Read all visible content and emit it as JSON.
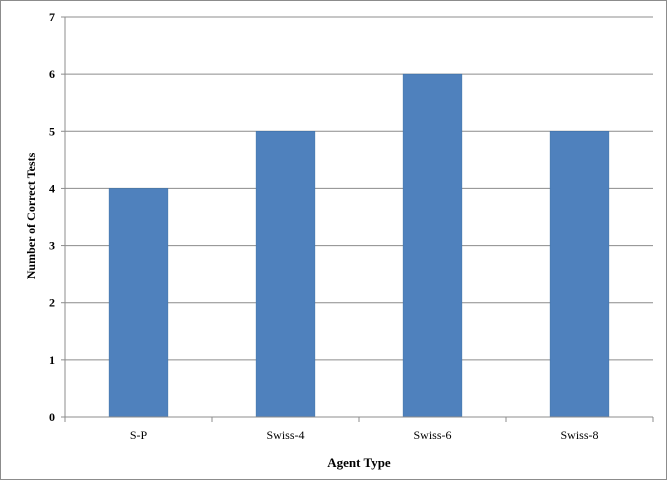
{
  "chart_data": {
    "type": "bar",
    "title": "",
    "xlabel": "Agent Type",
    "ylabel": "Number of Correct Tests",
    "categories": [
      "S-P",
      "Swiss-4",
      "Swiss-6",
      "Swiss-8"
    ],
    "values": [
      4,
      5,
      6,
      5
    ],
    "ylim": [
      0,
      7
    ],
    "yticks": [
      0,
      1,
      2,
      3,
      4,
      5,
      6,
      7
    ],
    "grid": true,
    "legend": "none",
    "colors": {
      "bar": "#4f81bd",
      "bar_edge": "#3a6ea5",
      "grid": "#8c8c8c",
      "axis": "#8c8c8c"
    }
  }
}
